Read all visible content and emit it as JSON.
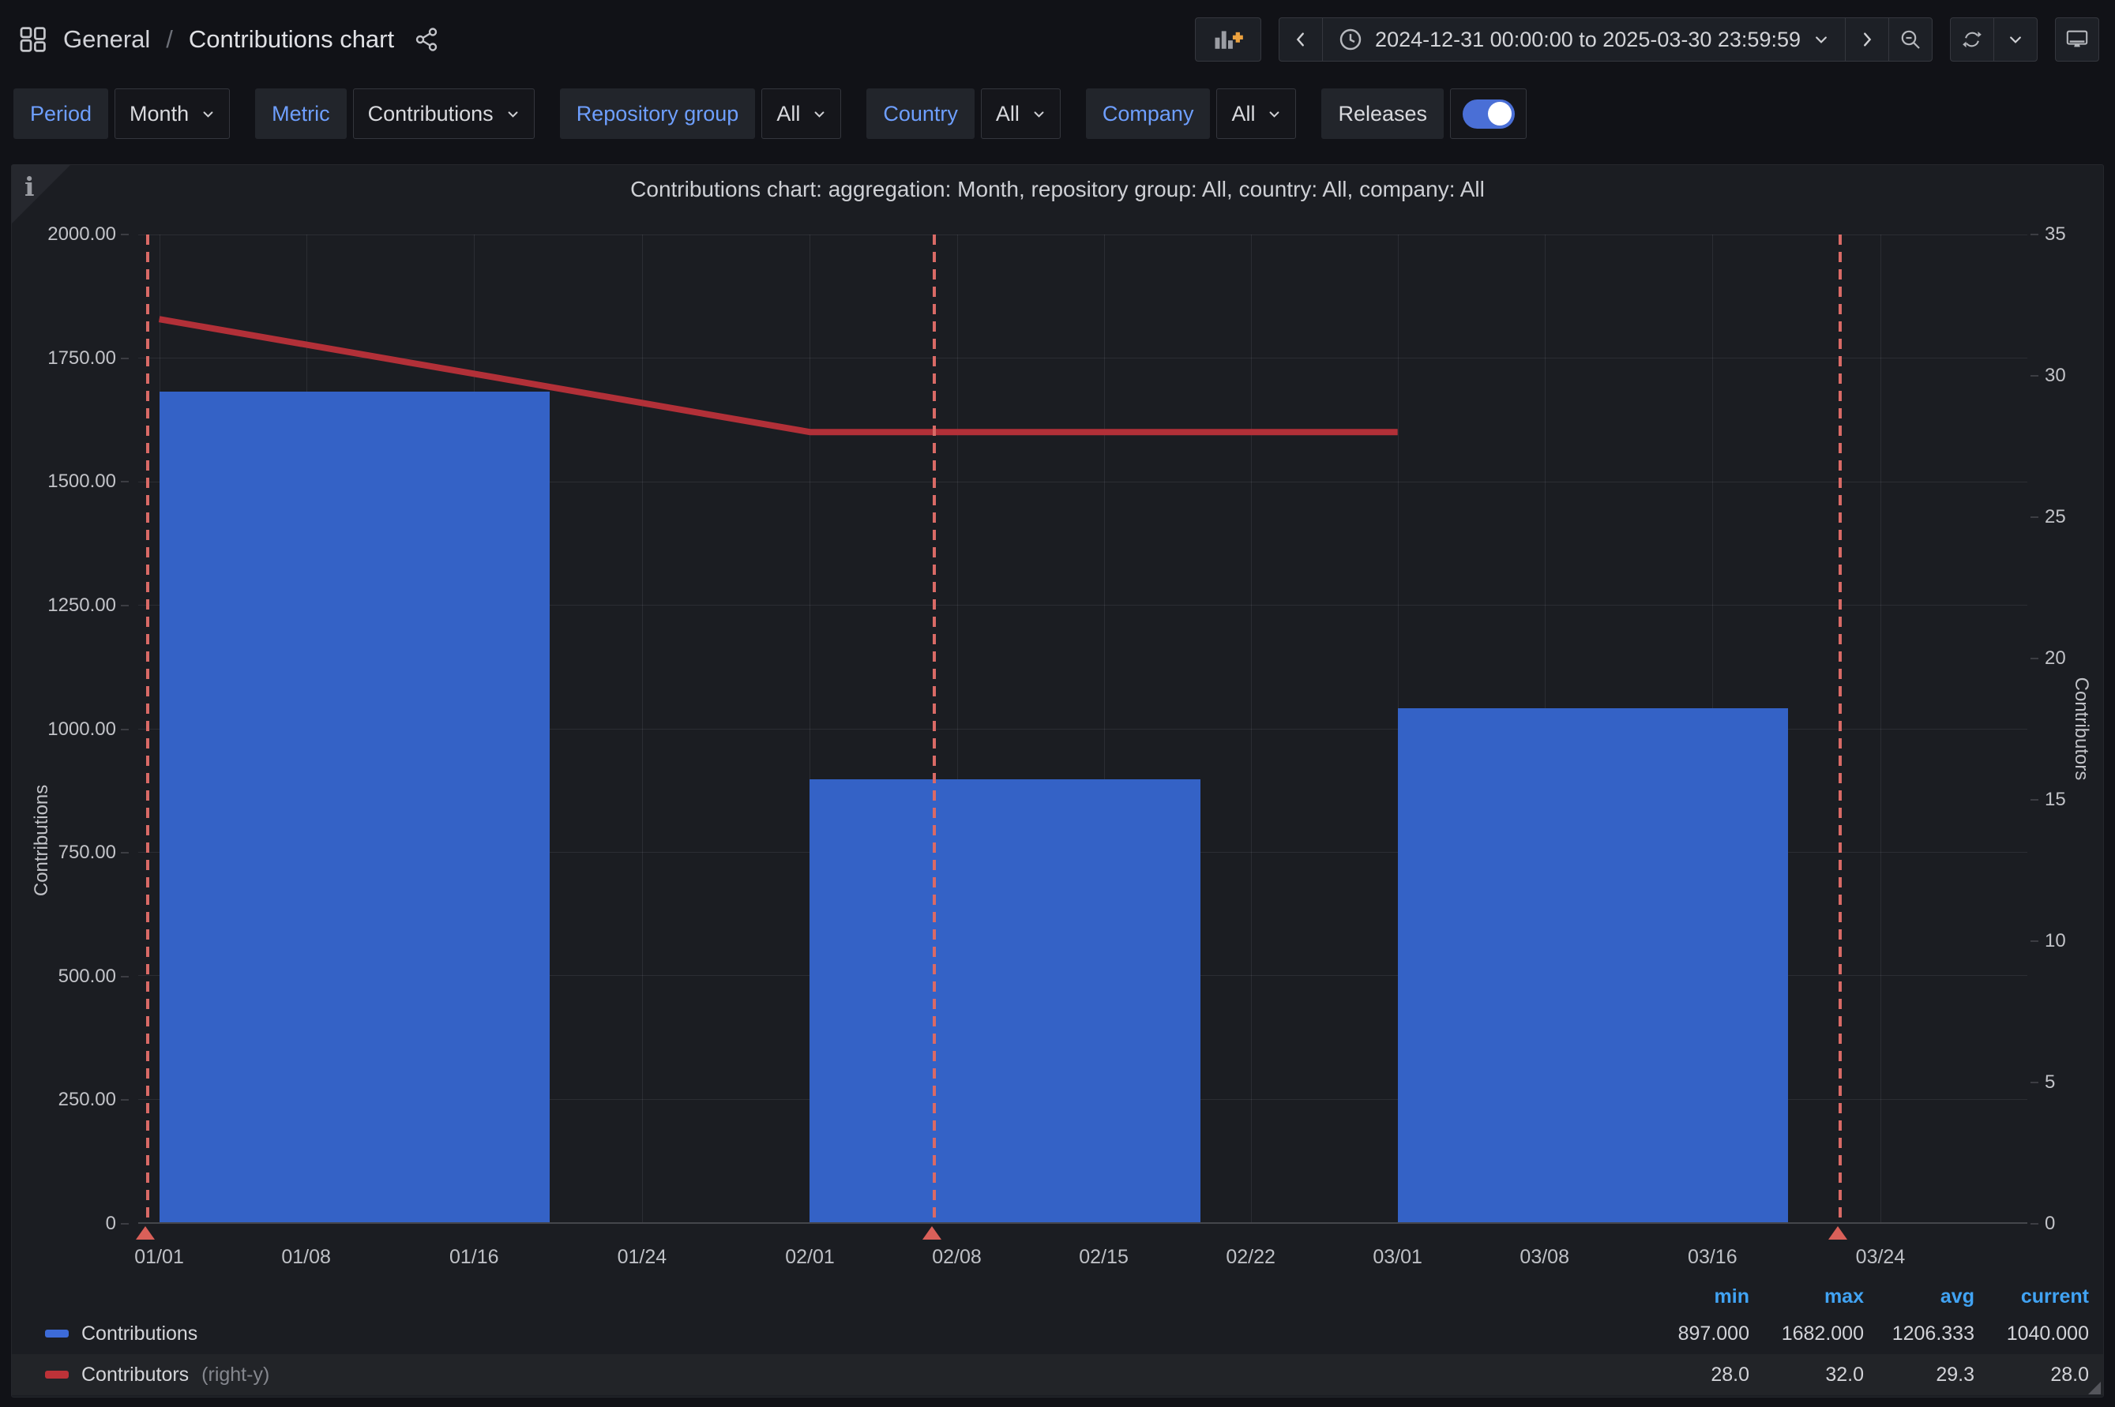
{
  "nav": {
    "breadcrumb": {
      "section": "General",
      "separator": "/",
      "page": "Contributions chart"
    },
    "time_range": "2024-12-31 00:00:00 to 2025-03-30 23:59:59"
  },
  "filters": {
    "period": {
      "label": "Period",
      "value": "Month"
    },
    "metric": {
      "label": "Metric",
      "value": "Contributions"
    },
    "repository_group": {
      "label": "Repository group",
      "value": "All"
    },
    "country": {
      "label": "Country",
      "value": "All"
    },
    "company": {
      "label": "Company",
      "value": "All"
    },
    "releases": {
      "label": "Releases",
      "enabled": true
    }
  },
  "chart_data": {
    "type": "bar",
    "title": "Contributions chart: aggregation: Month, repository group: All, country: All, company: All",
    "x_axis": {
      "start": "2024-12-31 00:00:00",
      "end": "2025-03-30 23:59:59",
      "total_days": 90,
      "ticks": [
        {
          "day": 1,
          "label": "01/01"
        },
        {
          "day": 8,
          "label": "01/08"
        },
        {
          "day": 16,
          "label": "01/16"
        },
        {
          "day": 24,
          "label": "01/24"
        },
        {
          "day": 32,
          "label": "02/01"
        },
        {
          "day": 39,
          "label": "02/08"
        },
        {
          "day": 46,
          "label": "02/15"
        },
        {
          "day": 53,
          "label": "02/22"
        },
        {
          "day": 60,
          "label": "03/01"
        },
        {
          "day": 67,
          "label": "03/08"
        },
        {
          "day": 75,
          "label": "03/16"
        },
        {
          "day": 83,
          "label": "03/24"
        }
      ]
    },
    "left_axis": {
      "label": "Contributions",
      "min": 0,
      "max": 2000,
      "ticks": [
        "2000.00",
        "1750.00",
        "1500.00",
        "1250.00",
        "1000.00",
        "750.00",
        "500.00",
        "250.00",
        "0"
      ]
    },
    "right_axis": {
      "label": "Contributors",
      "min": 0,
      "max": 35,
      "ticks": [
        "35",
        "30",
        "25",
        "20",
        "15",
        "10",
        "5",
        "0"
      ]
    },
    "series": [
      {
        "name": "Contributions",
        "type": "bars",
        "axis": "left",
        "color": "#3462c6",
        "bar_width_days": 18.6,
        "points": [
          {
            "day": 1,
            "month": "2025-01",
            "value": 1682
          },
          {
            "day": 32,
            "month": "2025-02",
            "value": 897
          },
          {
            "day": 60,
            "month": "2025-03",
            "value": 1040
          }
        ]
      },
      {
        "name": "Contributors",
        "type": "line",
        "axis": "right",
        "color": "#b23038",
        "width": 8,
        "points": [
          {
            "day": 1,
            "month": "2025-01",
            "value": 32
          },
          {
            "day": 32,
            "month": "2025-02",
            "value": 28
          },
          {
            "day": 60,
            "month": "2025-03",
            "value": 28
          }
        ]
      }
    ],
    "annotations": {
      "name": "releases",
      "line_color": "#d96a66",
      "marker_color": "#da6059",
      "days": [
        0.38,
        37.85,
        81.0
      ]
    },
    "legend": {
      "position": "bottom",
      "stat_headers": [
        "min",
        "max",
        "avg",
        "current"
      ],
      "rows": [
        {
          "label": "Contributions",
          "suffix": "",
          "swatch": "#3d6bd8",
          "stats": [
            "897.000",
            "1682.000",
            "1206.333",
            "1040.000"
          ],
          "highlight": false
        },
        {
          "label": "Contributors",
          "suffix": "(right-y)",
          "swatch": "#bd3238",
          "stats": [
            "28.0",
            "32.0",
            "29.3",
            "28.0"
          ],
          "highlight": true
        }
      ]
    }
  }
}
